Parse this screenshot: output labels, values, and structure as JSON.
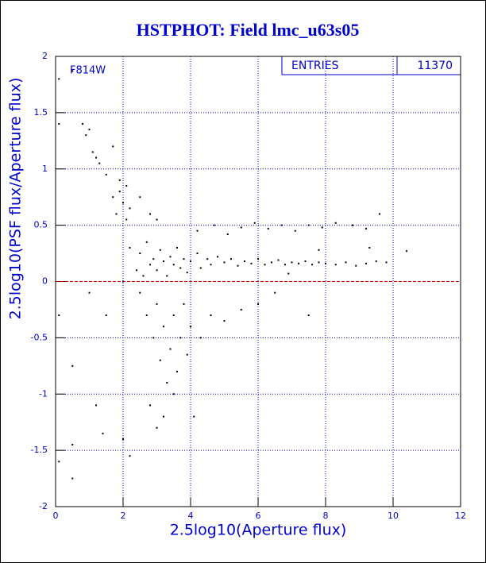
{
  "chart_data": {
    "type": "scatter",
    "title": "HSTPHOT: Field lmc_u63s05",
    "annotation": "F814W",
    "stats_label": "ENTRIES",
    "stats_value": 11370,
    "xlabel": "2.5log10(Aperture flux)",
    "ylabel": "2.5log10(PSF flux/Aperture flux)",
    "xlim": [
      0,
      12
    ],
    "ylim": [
      -2,
      2
    ],
    "xticks": [
      0,
      2,
      4,
      6,
      8,
      10,
      12
    ],
    "yticks": [
      -2,
      -1.5,
      -1,
      -0.5,
      0,
      0.5,
      1,
      1.5,
      2
    ],
    "grid": true,
    "grid_color": "#0000cc",
    "reference_line": 0,
    "reference_color": "#cc0000",
    "series": [
      {
        "color": "#000000",
        "x": [
          2.2,
          2.4,
          2.5,
          2.6,
          2.7,
          2.8,
          2.9,
          3.0,
          3.1,
          3.2,
          3.3,
          3.4,
          3.5,
          3.6,
          3.7,
          3.8,
          3.9,
          4.0,
          4.2,
          4.3,
          4.5,
          4.6,
          4.8,
          5.0,
          5.2,
          5.4,
          5.6,
          5.8,
          6.0,
          6.2,
          6.4,
          6.6,
          6.8,
          7.0,
          7.2,
          7.4,
          7.6,
          7.8,
          8.0,
          8.3,
          8.6,
          8.9,
          9.2,
          9.5,
          9.8,
          4.2,
          4.7,
          5.1,
          5.5,
          5.9,
          6.3,
          6.7,
          7.1,
          7.5,
          7.9,
          8.3,
          8.8,
          9.2,
          9.6,
          1.8,
          1.9,
          2.0,
          2.1,
          2.2,
          1.7,
          1.9,
          2.1,
          1.5,
          1.3,
          1.2,
          0.9,
          0.8,
          1.0,
          1.1,
          0.5,
          0.1,
          0.1,
          1.7,
          2.5,
          2.8,
          3.0,
          2.5,
          2.7,
          2.9,
          3.0,
          3.1,
          3.2,
          3.3,
          3.4,
          3.5,
          3.6,
          3.7,
          3.8,
          3.9,
          4.0,
          4.1,
          4.3,
          4.6,
          5.0,
          5.5,
          6.0,
          6.5,
          7.5,
          2.0,
          2.2,
          1.4,
          0.5,
          0.5,
          1.2,
          0.1,
          0.5,
          0.1,
          1.0,
          1.5,
          3.2,
          3.5,
          2.8,
          3.0,
          2.0,
          10.4,
          9.3,
          6.9,
          7.8
        ],
        "y": [
          0.3,
          0.1,
          0.25,
          0.05,
          0.35,
          0.15,
          0.2,
          0.1,
          0.28,
          0.18,
          0.05,
          0.22,
          0.15,
          0.3,
          0.12,
          0.2,
          0.08,
          0.18,
          0.25,
          0.12,
          0.2,
          0.15,
          0.22,
          0.17,
          0.2,
          0.14,
          0.18,
          0.16,
          0.2,
          0.15,
          0.17,
          0.19,
          0.15,
          0.17,
          0.16,
          0.18,
          0.15,
          0.17,
          0.16,
          0.15,
          0.17,
          0.14,
          0.16,
          0.18,
          0.17,
          0.45,
          0.5,
          0.42,
          0.48,
          0.52,
          0.47,
          0.5,
          0.45,
          0.5,
          0.48,
          0.52,
          0.5,
          0.47,
          0.6,
          0.6,
          0.8,
          0.7,
          0.55,
          0.65,
          0.75,
          0.9,
          0.85,
          0.95,
          1.05,
          1.1,
          1.3,
          1.4,
          1.35,
          1.15,
          1.87,
          1.8,
          1.4,
          1.2,
          0.75,
          0.6,
          0.55,
          -0.1,
          -0.3,
          -0.5,
          -0.2,
          -0.7,
          -0.4,
          -0.9,
          -0.6,
          -0.3,
          -0.8,
          -0.5,
          -0.2,
          -0.65,
          -0.4,
          -1.2,
          -0.5,
          -0.3,
          -0.35,
          -0.25,
          -0.2,
          -0.1,
          -0.3,
          -1.4,
          -1.55,
          -1.35,
          -1.45,
          -0.75,
          -1.1,
          -1.6,
          -1.75,
          -0.3,
          -0.1,
          -0.3,
          -1.2,
          -1.0,
          -1.1,
          -1.3,
          0.0,
          0.27,
          0.3,
          0.07,
          0.28
        ]
      }
    ]
  }
}
